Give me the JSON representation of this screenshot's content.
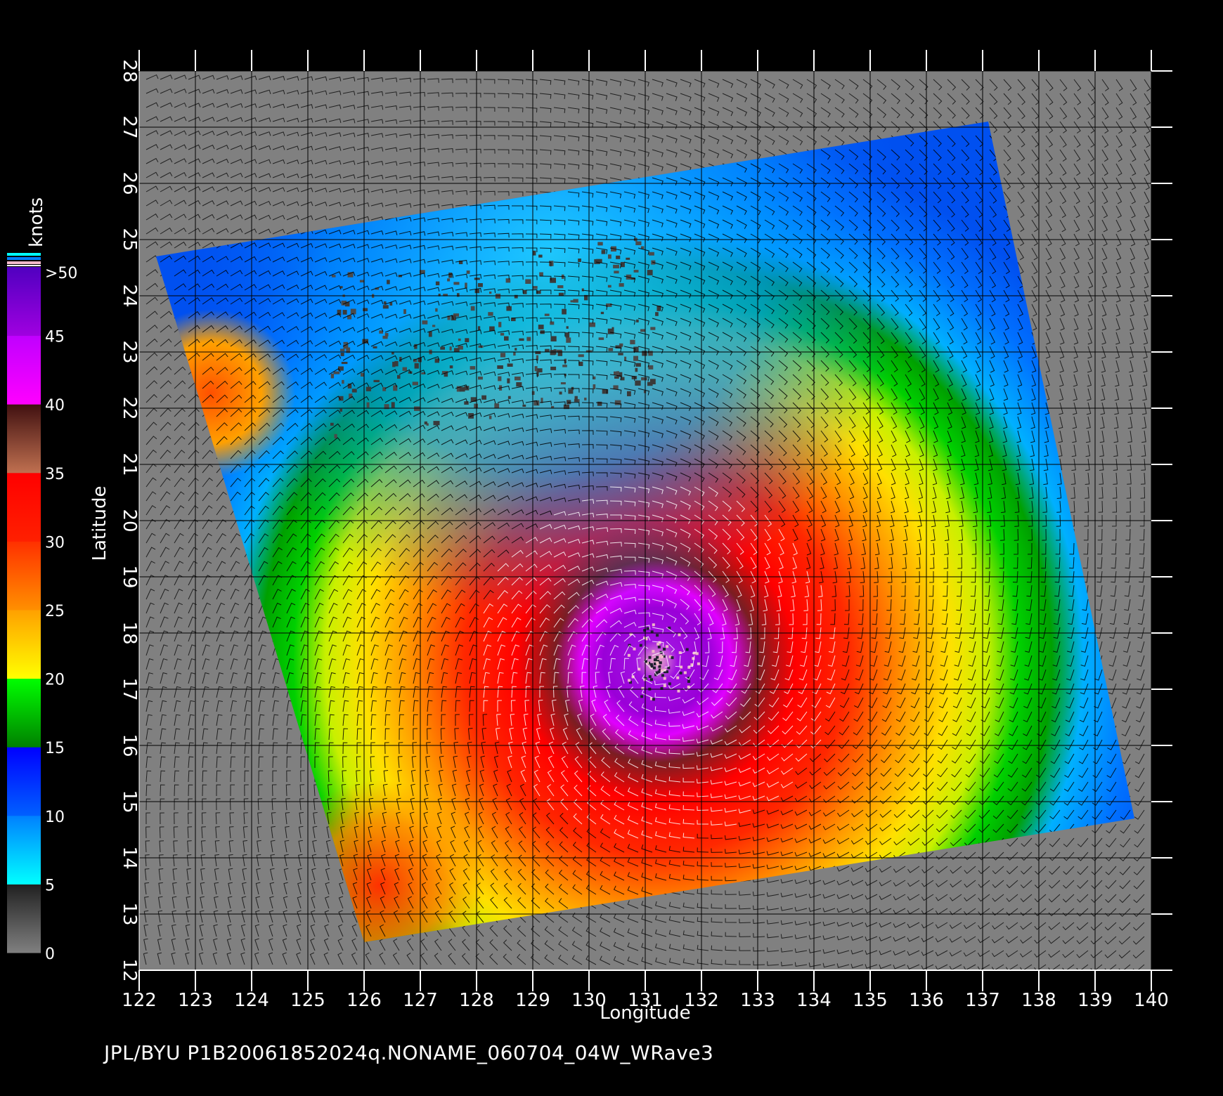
{
  "map": {
    "x_axis": {
      "label": "Longitude",
      "ticks": [
        "122",
        "123",
        "124",
        "125",
        "126",
        "127",
        "128",
        "129",
        "130",
        "131",
        "132",
        "133",
        "134",
        "135",
        "136",
        "137",
        "138",
        "139",
        "140"
      ],
      "range": [
        122,
        140
      ]
    },
    "y_axis": {
      "label": "Latitude",
      "ticks": [
        "12",
        "13",
        "14",
        "15",
        "16",
        "17",
        "18",
        "19",
        "20",
        "21",
        "22",
        "23",
        "24",
        "25",
        "26",
        "27",
        "28"
      ],
      "range": [
        12,
        28
      ]
    },
    "swath_corners_lonlat": [
      [
        122.3,
        24.7
      ],
      [
        137.1,
        27.1
      ],
      [
        139.7,
        14.7
      ],
      [
        126.0,
        12.5
      ]
    ],
    "storm_center_lonlat": [
      131.2,
      17.5
    ],
    "colors": {
      "background": "#000000",
      "no_data": "#808080",
      "grid": "#000000",
      "wind_barb": "#000000",
      "strong_wind_barb": "#ffffff"
    }
  },
  "colorbar": {
    "unit": "knots",
    "labels": [
      ">50",
      "45",
      "40",
      "35",
      "30",
      "25",
      "20",
      "15",
      "10",
      "5",
      "0"
    ],
    "bands": [
      {
        "from": 0,
        "to": 5,
        "top": "#202020",
        "bottom": "#808080"
      },
      {
        "from": 5,
        "to": 10,
        "top": "#0080ff",
        "bottom": "#00ffff"
      },
      {
        "from": 10,
        "to": 15,
        "top": "#0000ff",
        "bottom": "#0060ff"
      },
      {
        "from": 15,
        "to": 20,
        "top": "#00ff00",
        "bottom": "#008000"
      },
      {
        "from": 20,
        "to": 25,
        "top": "#ffa000",
        "bottom": "#ffff00"
      },
      {
        "from": 25,
        "to": 30,
        "top": "#ff3000",
        "bottom": "#ff9000"
      },
      {
        "from": 30,
        "to": 35,
        "top": "#ff0000",
        "bottom": "#ff2000"
      },
      {
        "from": 35,
        "to": 40,
        "top": "#401010",
        "bottom": "#c07050"
      },
      {
        "from": 40,
        "to": 45,
        "top": "#c000ff",
        "bottom": "#ff00ff"
      },
      {
        "from": 45,
        "to": 50,
        "top": "#5000c0",
        "bottom": "#a000e0"
      }
    ]
  },
  "caption": "JPL/BYU  P1B20061852024q.NONAME_060704_04W_WRave3"
}
